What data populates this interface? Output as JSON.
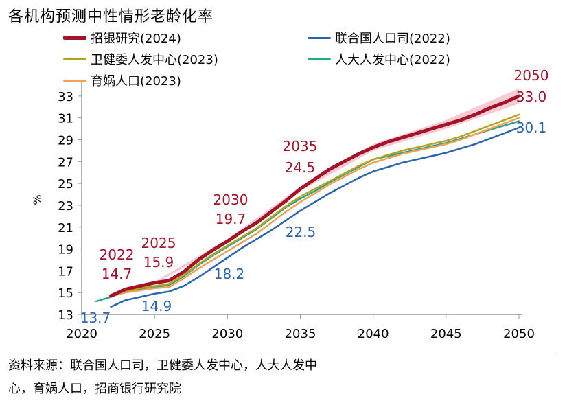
{
  "title": "各机构预测中性情形老龄化率",
  "source_note_line1": "资料来源：联合国人口司，卫健委人发中心，人大人发中",
  "source_note_line2": "心，育娲人口，招商银行研究院",
  "legend": [
    {
      "label": "招银研究(2024)",
      "color": "#a31428"
    },
    {
      "label": "联合国人口司(2022)",
      "color": "#2a64b0"
    },
    {
      "label": "卫健委人发中心(2023)",
      "color": "#b5a31e"
    },
    {
      "label": "人大人发中心(2022)",
      "color": "#2aa58e"
    },
    {
      "label": "育娲人口(2023)",
      "color": "#f3a057"
    }
  ],
  "chart_data": {
    "type": "line",
    "title": "各机构预测中性情形老龄化率",
    "ylabel": "%",
    "xlim": [
      2020,
      2050
    ],
    "ylim": [
      13,
      34
    ],
    "xticks": [
      2020,
      2025,
      2030,
      2035,
      2040,
      2045,
      2050
    ],
    "yticks": [
      13,
      15,
      17,
      19,
      21,
      23,
      25,
      27,
      29,
      31,
      33
    ],
    "series": [
      {
        "name": "招银研究(2024)",
        "color": "#a31428",
        "x": [
          2022,
          2023,
          2024,
          2025,
          2026,
          2027,
          2028,
          2029,
          2030,
          2031,
          2032,
          2033,
          2034,
          2035,
          2036,
          2037,
          2038,
          2039,
          2040,
          2041,
          2042,
          2043,
          2044,
          2045,
          2046,
          2047,
          2048,
          2049,
          2050
        ],
        "y": [
          14.7,
          15.3,
          15.6,
          15.9,
          16.1,
          16.9,
          18.0,
          18.9,
          19.7,
          20.6,
          21.4,
          22.4,
          23.4,
          24.5,
          25.4,
          26.3,
          27.0,
          27.7,
          28.3,
          28.8,
          29.2,
          29.6,
          30.0,
          30.4,
          30.8,
          31.3,
          31.9,
          32.4,
          33.0
        ]
      },
      {
        "name": "联合国人口司(2022)",
        "color": "#2a64b0",
        "x": [
          2022,
          2023,
          2024,
          2025,
          2026,
          2027,
          2028,
          2029,
          2030,
          2031,
          2032,
          2033,
          2034,
          2035,
          2036,
          2037,
          2038,
          2039,
          2040,
          2041,
          2042,
          2043,
          2044,
          2045,
          2046,
          2047,
          2048,
          2049,
          2050
        ],
        "y": [
          13.7,
          14.3,
          14.6,
          14.9,
          15.1,
          15.6,
          16.4,
          17.3,
          18.2,
          19.1,
          19.9,
          20.7,
          21.6,
          22.5,
          23.3,
          24.1,
          24.8,
          25.5,
          26.1,
          26.5,
          26.9,
          27.2,
          27.5,
          27.8,
          28.2,
          28.6,
          29.1,
          29.6,
          30.1
        ]
      },
      {
        "name": "卫健委人发中心(2023)",
        "color": "#b5a31e",
        "x": [
          2022,
          2023,
          2024,
          2025,
          2026,
          2027,
          2028,
          2029,
          2030,
          2031,
          2032,
          2033,
          2034,
          2035,
          2036,
          2037,
          2038,
          2039,
          2040,
          2041,
          2042,
          2043,
          2044,
          2045,
          2046,
          2047,
          2048,
          2049,
          2050
        ],
        "y": [
          14.8,
          15.1,
          15.4,
          15.6,
          15.8,
          16.6,
          17.6,
          18.5,
          19.3,
          20.1,
          20.9,
          21.9,
          22.9,
          23.8,
          24.5,
          25.2,
          25.9,
          26.6,
          27.2,
          27.6,
          28.0,
          28.3,
          28.6,
          28.9,
          29.3,
          29.8,
          30.3,
          30.8,
          31.3
        ]
      },
      {
        "name": "人大人发中心(2022)",
        "color": "#2aa58e",
        "x": [
          2021,
          2022,
          2023,
          2024,
          2025,
          2026,
          2027,
          2028,
          2029,
          2030,
          2031,
          2032,
          2033,
          2034,
          2035,
          2036,
          2037,
          2038,
          2039,
          2040,
          2041,
          2042,
          2043,
          2044,
          2045,
          2046,
          2047,
          2048,
          2049,
          2050
        ],
        "y": [
          14.2,
          14.6,
          15.1,
          15.3,
          15.5,
          15.7,
          16.5,
          17.5,
          18.4,
          19.2,
          20.0,
          20.8,
          21.8,
          22.8,
          23.6,
          24.3,
          25.1,
          25.8,
          26.5,
          27.2,
          27.5,
          27.8,
          28.1,
          28.4,
          28.7,
          29.1,
          29.5,
          29.9,
          30.3,
          30.7
        ]
      },
      {
        "name": "育娲人口(2023)",
        "color": "#f3a057",
        "x": [
          2022,
          2023,
          2024,
          2025,
          2026,
          2027,
          2028,
          2029,
          2030,
          2031,
          2032,
          2033,
          2034,
          2035,
          2036,
          2037,
          2038,
          2039,
          2040,
          2041,
          2042,
          2043,
          2044,
          2045,
          2046,
          2047,
          2048,
          2049,
          2050
        ],
        "y": [
          14.7,
          15.0,
          15.2,
          15.4,
          15.5,
          16.3,
          17.2,
          18.0,
          18.8,
          19.6,
          20.4,
          21.4,
          22.4,
          23.3,
          24.1,
          24.9,
          25.6,
          26.3,
          26.9,
          27.3,
          27.7,
          28.0,
          28.3,
          28.6,
          29.0,
          29.5,
          30.0,
          30.5,
          31.0
        ]
      }
    ],
    "band": {
      "series": "招银研究(2024)",
      "color": "#f5b8c4",
      "x": [
        2022,
        2025,
        2030,
        2035,
        2040,
        2045,
        2050
      ],
      "upper": [
        14.8,
        16.0,
        19.9,
        24.7,
        28.6,
        30.8,
        33.7
      ],
      "lower": [
        14.6,
        15.8,
        19.5,
        24.3,
        28.0,
        30.0,
        32.3
      ]
    },
    "annotations": [
      {
        "year_label": "2022",
        "value_label": "14.7",
        "color": "#a31428"
      },
      {
        "year_label": "2025",
        "value_label": "15.9",
        "color": "#a31428"
      },
      {
        "year_label": "2030",
        "value_label": "19.7",
        "color": "#a31428"
      },
      {
        "year_label": "2035",
        "value_label": "24.5",
        "color": "#a31428"
      },
      {
        "year_label": "2050",
        "value_label": "33.0",
        "color": "#a31428"
      },
      {
        "year_label": "",
        "value_label": "13.7",
        "color": "#2a64b0"
      },
      {
        "year_label": "",
        "value_label": "14.9",
        "color": "#2a64b0"
      },
      {
        "year_label": "",
        "value_label": "18.2",
        "color": "#2a64b0"
      },
      {
        "year_label": "",
        "value_label": "22.5",
        "color": "#2a64b0"
      },
      {
        "year_label": "",
        "value_label": "30.1",
        "color": "#2a64b0"
      }
    ],
    "grid": false,
    "legend_position": "top"
  }
}
